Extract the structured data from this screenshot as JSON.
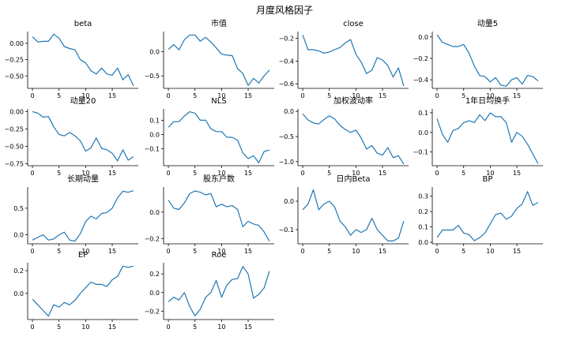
{
  "figure": {
    "title": "月度风格因子"
  },
  "colors": {
    "line": "#1f77b4",
    "axis": "#000000"
  },
  "chart_data": [
    {
      "type": "line",
      "title": "beta",
      "x": [
        0,
        1,
        2,
        3,
        4,
        5,
        6,
        7,
        8,
        9,
        10,
        11,
        12,
        13,
        14,
        15,
        16,
        17,
        18,
        19
      ],
      "values": [
        0.1,
        0.02,
        0.03,
        0.03,
        0.14,
        0.08,
        -0.05,
        -0.08,
        -0.1,
        -0.25,
        -0.3,
        -0.42,
        -0.47,
        -0.38,
        -0.47,
        -0.49,
        -0.38,
        -0.56,
        -0.48,
        -0.65
      ],
      "xticks": [
        0,
        5,
        10,
        15
      ],
      "yticks": [
        0.0,
        -0.25,
        -0.5
      ],
      "yticklabels": [
        "0.00",
        "−0.25",
        "−0.50"
      ],
      "ylim": [
        -0.69,
        0.18
      ]
    },
    {
      "type": "line",
      "title": "市值",
      "x": [
        0,
        1,
        2,
        3,
        4,
        5,
        6,
        7,
        8,
        9,
        10,
        11,
        12,
        13,
        14,
        15,
        16,
        17,
        18,
        19
      ],
      "values": [
        0.05,
        0.15,
        0.04,
        0.25,
        0.35,
        0.35,
        0.22,
        0.3,
        0.2,
        0.08,
        -0.05,
        -0.07,
        -0.08,
        -0.35,
        -0.45,
        -0.7,
        -0.55,
        -0.65,
        -0.5,
        -0.38
      ],
      "xticks": [
        0,
        5,
        10,
        15
      ],
      "yticks": [
        0.0,
        -0.5
      ],
      "yticklabels": [
        "0.0",
        "−0.5"
      ],
      "ylim": [
        -0.76,
        0.42
      ]
    },
    {
      "type": "line",
      "title": "close",
      "x": [
        0,
        1,
        2,
        3,
        4,
        5,
        6,
        7,
        8,
        9,
        10,
        11,
        12,
        13,
        14,
        15,
        16,
        17,
        18,
        19
      ],
      "values": [
        -0.17,
        -0.3,
        -0.3,
        -0.31,
        -0.33,
        -0.32,
        -0.3,
        -0.28,
        -0.24,
        -0.21,
        -0.34,
        -0.41,
        -0.51,
        -0.48,
        -0.37,
        -0.39,
        -0.44,
        -0.54,
        -0.46,
        -0.62
      ],
      "xticks": [
        0,
        5,
        10,
        15
      ],
      "yticks": [
        -0.2,
        -0.4,
        -0.6
      ],
      "yticklabels": [
        "−0.2",
        "−0.4",
        "−0.6"
      ],
      "ylim": [
        -0.64,
        -0.14
      ]
    },
    {
      "type": "line",
      "title": "动量5",
      "x": [
        0,
        1,
        2,
        3,
        4,
        5,
        6,
        7,
        8,
        9,
        10,
        11,
        12,
        13,
        14,
        15,
        16,
        17,
        18,
        19
      ],
      "values": [
        0.02,
        -0.05,
        -0.07,
        -0.09,
        -0.09,
        -0.07,
        -0.15,
        -0.27,
        -0.36,
        -0.37,
        -0.42,
        -0.38,
        -0.45,
        -0.46,
        -0.4,
        -0.38,
        -0.44,
        -0.36,
        -0.37,
        -0.41
      ],
      "xticks": [
        0,
        5,
        10,
        15
      ],
      "yticks": [
        0.0,
        -0.2,
        -0.4
      ],
      "yticklabels": [
        "0.0",
        "−0.2",
        "−0.4"
      ],
      "ylim": [
        -0.48,
        0.05
      ]
    },
    {
      "type": "line",
      "title": "动量20",
      "x": [
        0,
        1,
        2,
        3,
        4,
        5,
        6,
        7,
        8,
        9,
        10,
        11,
        12,
        13,
        14,
        15,
        16,
        17,
        18,
        19
      ],
      "values": [
        0.0,
        -0.02,
        -0.08,
        -0.07,
        -0.22,
        -0.33,
        -0.35,
        -0.3,
        -0.35,
        -0.42,
        -0.57,
        -0.52,
        -0.38,
        -0.53,
        -0.55,
        -0.6,
        -0.71,
        -0.55,
        -0.7,
        -0.65
      ],
      "xticks": [
        0,
        5,
        10,
        15
      ],
      "yticks": [
        0.0,
        -0.25,
        -0.5,
        -0.75
      ],
      "yticklabels": [
        "0.00",
        "−0.25",
        "−0.50",
        "−0.75"
      ],
      "ylim": [
        -0.78,
        0.04
      ]
    },
    {
      "type": "line",
      "title": "NLS",
      "x": [
        0,
        1,
        2,
        3,
        4,
        5,
        6,
        7,
        8,
        9,
        10,
        11,
        12,
        13,
        14,
        15,
        16,
        17,
        18,
        19
      ],
      "values": [
        0.05,
        0.09,
        0.09,
        0.13,
        0.16,
        0.15,
        0.1,
        0.1,
        0.04,
        0.02,
        0.02,
        -0.02,
        -0.02,
        -0.04,
        -0.13,
        -0.17,
        -0.15,
        -0.2,
        -0.12,
        -0.11
      ],
      "xticks": [
        0,
        5,
        10,
        15
      ],
      "yticks": [
        0.1,
        0.0,
        -0.1
      ],
      "yticklabels": [
        "0.1",
        "0.0",
        "−0.1"
      ],
      "ylim": [
        -0.22,
        0.18
      ]
    },
    {
      "type": "line",
      "title": "加权波动率",
      "x": [
        0,
        1,
        2,
        3,
        4,
        5,
        6,
        7,
        8,
        9,
        10,
        11,
        12,
        13,
        14,
        15,
        16,
        17,
        18,
        19
      ],
      "values": [
        -0.05,
        -0.17,
        -0.23,
        -0.25,
        -0.16,
        -0.09,
        -0.15,
        -0.28,
        -0.36,
        -0.42,
        -0.37,
        -0.53,
        -0.75,
        -0.68,
        -0.83,
        -0.87,
        -0.72,
        -0.92,
        -0.88,
        -1.05
      ],
      "xticks": [
        0,
        5,
        10,
        15
      ],
      "yticks": [
        0.0,
        -0.5,
        -1.0
      ],
      "yticklabels": [
        "0.0",
        "−0.5",
        "−1.0"
      ],
      "ylim": [
        -1.08,
        0.05
      ]
    },
    {
      "type": "line",
      "title": "1年日均换手",
      "x": [
        0,
        1,
        2,
        3,
        4,
        5,
        6,
        7,
        8,
        9,
        10,
        11,
        12,
        13,
        14,
        15,
        16,
        17,
        18,
        19
      ],
      "values": [
        0.07,
        -0.01,
        -0.05,
        0.01,
        0.02,
        0.05,
        0.06,
        0.05,
        0.09,
        0.06,
        0.1,
        0.08,
        0.08,
        0.05,
        -0.05,
        0.0,
        -0.02,
        -0.06,
        -0.11,
        -0.16
      ],
      "xticks": [
        0,
        5,
        10,
        15
      ],
      "yticks": [
        0.1,
        0.0,
        -0.1
      ],
      "yticklabels": [
        "0.1",
        "0.0",
        "−0.1"
      ],
      "ylim": [
        -0.17,
        0.12
      ]
    },
    {
      "type": "line",
      "title": "长期动量",
      "x": [
        0,
        1,
        2,
        3,
        4,
        5,
        6,
        7,
        8,
        9,
        10,
        11,
        12,
        13,
        14,
        15,
        16,
        17,
        18,
        19
      ],
      "values": [
        -0.1,
        -0.05,
        0.0,
        -0.1,
        -0.08,
        0.0,
        0.05,
        -0.1,
        -0.12,
        0.02,
        0.25,
        0.35,
        0.3,
        0.4,
        0.42,
        0.5,
        0.7,
        0.82,
        0.8,
        0.83
      ],
      "xticks": [
        0,
        5,
        10,
        15
      ],
      "yticks": [
        0.5,
        0.0
      ],
      "yticklabels": [
        "0.5",
        "0.0"
      ],
      "ylim": [
        -0.17,
        0.9
      ]
    },
    {
      "type": "line",
      "title": "股东户数",
      "x": [
        0,
        1,
        2,
        3,
        4,
        5,
        6,
        7,
        8,
        9,
        10,
        11,
        12,
        13,
        14,
        15,
        16,
        17,
        18,
        19
      ],
      "values": [
        0.09,
        0.03,
        0.02,
        0.07,
        0.14,
        0.16,
        0.15,
        0.13,
        0.14,
        0.04,
        0.06,
        0.04,
        0.05,
        0.02,
        -0.11,
        -0.07,
        -0.09,
        -0.1,
        -0.15,
        -0.22
      ],
      "xticks": [
        0,
        5,
        10,
        15
      ],
      "yticks": [
        0.0,
        -0.2
      ],
      "yticklabels": [
        "0.0",
        "−0.2"
      ],
      "ylim": [
        -0.24,
        0.19
      ]
    },
    {
      "type": "line",
      "title": "日内Beta",
      "x": [
        0,
        1,
        2,
        3,
        4,
        5,
        6,
        7,
        8,
        9,
        10,
        11,
        12,
        13,
        14,
        15,
        16,
        17,
        18,
        19
      ],
      "values": [
        -0.03,
        -0.01,
        0.04,
        -0.03,
        -0.01,
        0.0,
        -0.02,
        -0.07,
        -0.09,
        -0.12,
        -0.1,
        -0.11,
        -0.1,
        -0.06,
        -0.1,
        -0.12,
        -0.14,
        -0.14,
        -0.13,
        -0.07
      ],
      "xticks": [
        0,
        5,
        10,
        15
      ],
      "yticks": [
        0.0,
        -0.1
      ],
      "yticklabels": [
        "0.0",
        "−0.1"
      ],
      "ylim": [
        -0.15,
        0.05
      ]
    },
    {
      "type": "line",
      "title": "BP",
      "x": [
        0,
        1,
        2,
        3,
        4,
        5,
        6,
        7,
        8,
        9,
        10,
        11,
        12,
        13,
        14,
        15,
        16,
        17,
        18,
        19
      ],
      "values": [
        0.03,
        0.08,
        0.08,
        0.08,
        0.11,
        0.06,
        0.05,
        0.01,
        0.03,
        0.06,
        0.12,
        0.18,
        0.19,
        0.15,
        0.17,
        0.22,
        0.25,
        0.33,
        0.24,
        0.26
      ],
      "xticks": [
        0,
        5,
        10,
        15
      ],
      "yticks": [
        0.3,
        0.2,
        0.1,
        0.0
      ],
      "yticklabels": [
        "0.3",
        "0.2",
        "0.1",
        "0.0"
      ],
      "ylim": [
        -0.01,
        0.36
      ]
    },
    {
      "type": "line",
      "title": "EP",
      "x": [
        0,
        1,
        2,
        3,
        4,
        5,
        6,
        7,
        8,
        9,
        10,
        11,
        12,
        13,
        14,
        15,
        16,
        17,
        18,
        19
      ],
      "values": [
        -0.05,
        -0.1,
        -0.15,
        -0.2,
        -0.1,
        -0.12,
        -0.08,
        -0.1,
        -0.06,
        0.0,
        0.05,
        0.1,
        0.08,
        0.08,
        0.06,
        0.12,
        0.15,
        0.24,
        0.23,
        0.24
      ],
      "xticks": [
        0,
        5,
        10,
        15
      ],
      "yticks": [
        0.2,
        0.0
      ],
      "yticklabels": [
        "0.2",
        "0.0"
      ],
      "ylim": [
        -0.23,
        0.27
      ]
    },
    {
      "type": "line",
      "title": "Roe",
      "x": [
        0,
        1,
        2,
        3,
        4,
        5,
        6,
        7,
        8,
        9,
        10,
        11,
        12,
        13,
        14,
        15,
        16,
        17,
        18,
        19
      ],
      "values": [
        -0.1,
        -0.05,
        -0.08,
        0.0,
        -0.15,
        -0.25,
        -0.18,
        -0.05,
        0.0,
        0.13,
        -0.05,
        0.08,
        0.14,
        0.15,
        0.28,
        0.2,
        -0.06,
        -0.02,
        0.05,
        0.23
      ],
      "xticks": [
        0,
        5,
        10,
        15
      ],
      "yticks": [
        0.2,
        0.0,
        -0.2
      ],
      "yticklabels": [
        "0.2",
        "0.0",
        "−0.2"
      ],
      "ylim": [
        -0.29,
        0.32
      ]
    }
  ]
}
